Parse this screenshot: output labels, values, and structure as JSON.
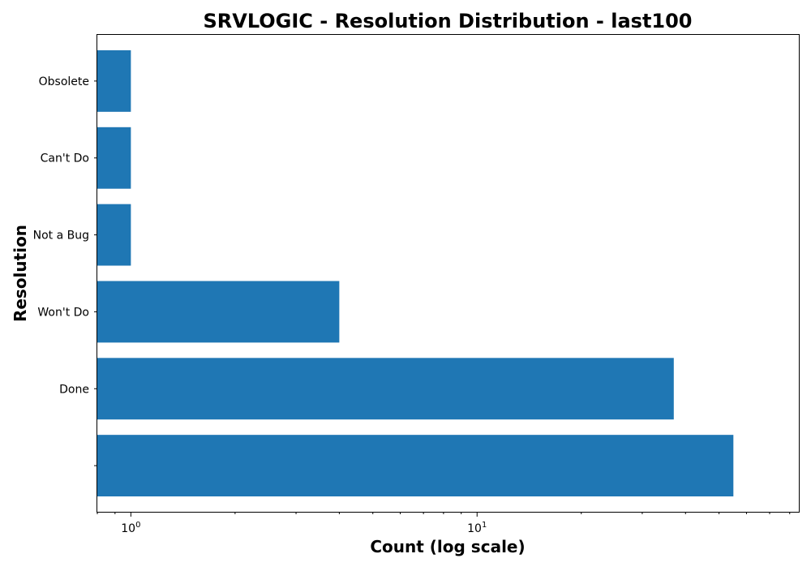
{
  "chart_data": {
    "type": "bar",
    "orientation": "horizontal",
    "title": "SRVLOGIC - Resolution Distribution - last100",
    "xlabel": "Count (log scale)",
    "ylabel": "Resolution",
    "x_scale": "log",
    "xlim": [
      0.8,
      85
    ],
    "x_major_ticks": [
      {
        "value": 1,
        "base": "10",
        "exponent": "0"
      },
      {
        "value": 10,
        "base": "10",
        "exponent": "1"
      }
    ],
    "categories": [
      "",
      "Done",
      "Won't Do",
      "Not a Bug",
      "Can't Do",
      "Obsolete"
    ],
    "values": [
      55,
      37,
      4,
      1,
      1,
      1
    ],
    "bar_color": "#1f77b4",
    "grid": false,
    "legend": "none"
  }
}
